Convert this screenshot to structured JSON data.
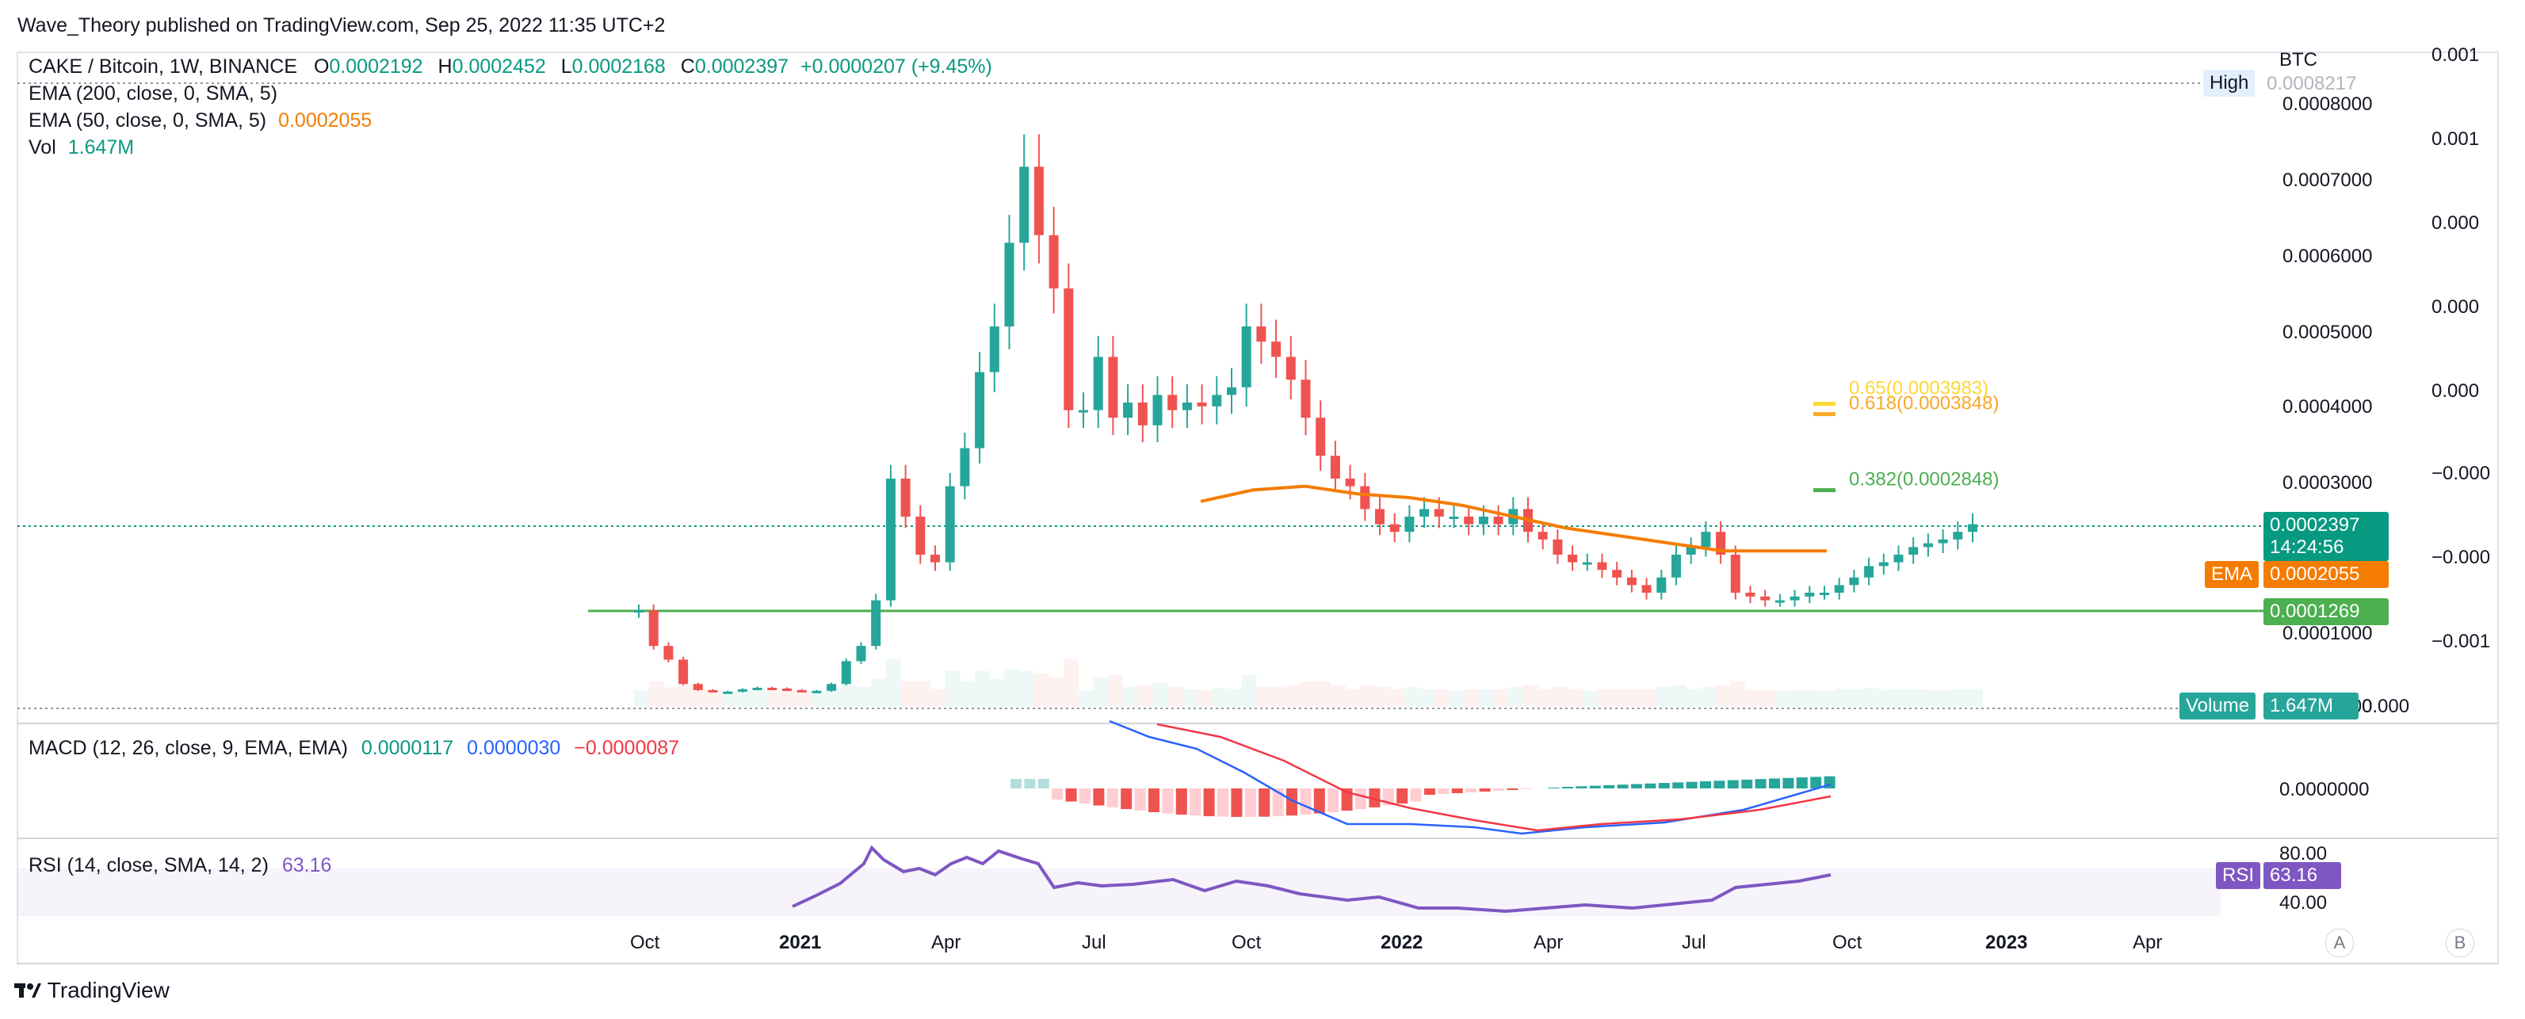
{
  "publisher": "Wave_Theory published on TradingView.com, Sep 25, 2022 11:35 UTC+2",
  "symbol": {
    "title": "CAKE / Bitcoin, 1W, BINANCE",
    "o_label": "O",
    "o": "0.0002192",
    "h_label": "H",
    "h": "0.0002452",
    "l_label": "L",
    "l": "0.0002168",
    "c_label": "C",
    "c": "0.0002397",
    "change": "+0.0000207 (+9.45%)"
  },
  "indicators": {
    "ema200": "EMA (200, close, 0, SMA, 5)",
    "ema50": "EMA (50, close, 0, SMA, 5)",
    "ema50_value": "0.0002055",
    "vol": "Vol",
    "vol_value": "1.647M",
    "macd": "MACD (12, 26, close, 9, EMA, EMA)",
    "macd_hist": "0.0000117",
    "macd_line": "0.0000030",
    "macd_signal": "−0.0000087",
    "rsi": "RSI (14, close, SMA, 14, 2)",
    "rsi_value": "63.16"
  },
  "price_axis": {
    "currency": "BTC",
    "labels": [
      "0.0008000",
      "0.0007000",
      "0.0006000",
      "0.0005000",
      "0.0004000",
      "0.0003000",
      "0.0001000",
      "0.0000000"
    ],
    "left_scale": [
      "0.001",
      "0.001",
      "0.000",
      "0.000",
      "0.000",
      "−0.000",
      "−0.000",
      "−0.001",
      "0.000"
    ],
    "high_label": "High",
    "high_value": "0.0008217",
    "last_price": "0.0002397",
    "countdown": "14:24:56",
    "ema_tag": "EMA",
    "ema_value": "0.0002055",
    "support_value": "0.0001269",
    "volume_tag": "Volume",
    "volume_value": "1.647M"
  },
  "fib_levels": [
    {
      "label": "0.382(0.0002848)",
      "price": 0.0002848,
      "color": "#4caf50"
    },
    {
      "label": "0.618(0.0003848)",
      "price": 0.0003848,
      "color": "#f9a825"
    },
    {
      "label": "0.65(0.0003983)",
      "price": 0.0003983,
      "color": "#fdd835"
    }
  ],
  "macd_axis": {
    "label": "0.0000000"
  },
  "rsi_axis": {
    "top": "80.00",
    "bottom": "40.00",
    "tag": "RSI",
    "value": "63.16"
  },
  "time_axis": [
    "Oct",
    "2021",
    "Apr",
    "Jul",
    "Oct",
    "2022",
    "Apr",
    "Jul",
    "Oct",
    "2023",
    "Apr"
  ],
  "buttons": {
    "a": "A",
    "b": "B"
  },
  "brand": "TradingView",
  "colors": {
    "up": "#26a69a",
    "down": "#ef5350",
    "ema": "#f57c00",
    "support": "#4caf50",
    "macd": "#2962ff",
    "signal": "#f23645",
    "rsi": "#7e57c2",
    "price_tag": "#089981"
  },
  "chart_data": {
    "type": "candlestick",
    "title": "CAKE / Bitcoin, 1W, BINANCE",
    "x_ticks": [
      "Oct",
      "2021",
      "Apr",
      "Jul",
      "Oct",
      "2022",
      "Apr",
      "Jul",
      "Oct",
      "2023",
      "Apr"
    ],
    "y_unit": "BTC",
    "ylim": [
      0.0,
      0.00082
    ],
    "support_level": 0.0001269,
    "price_segments": [
      {
        "from": "2020-09-28",
        "to": "2020-12-28",
        "values": [
          0.000127,
          8e-05,
          6.2e-05,
          3e-05,
          2.2e-05,
          2e-05,
          2e-05,
          2.3e-05,
          2.5e-05,
          2.4e-05,
          2.2e-05,
          2.1e-05,
          2.1e-05,
          3e-05
        ]
      },
      {
        "from": "2021-01-04",
        "to": "2021-06-28",
        "values": [
          6e-05,
          8e-05,
          0.00014,
          0.0003,
          0.00025,
          0.0002,
          0.00019,
          0.00029,
          0.00034,
          0.00044,
          0.0005,
          0.00061,
          0.00071,
          0.00062,
          0.00055,
          0.00039,
          0.00039,
          0.00046,
          0.00038,
          0.0004,
          0.00037,
          0.00041,
          0.00039,
          0.0004,
          0.000395,
          0.00041
        ]
      },
      {
        "from": "2021-07-05",
        "to": "2021-12-27",
        "values": [
          0.00042,
          0.0005,
          0.00048,
          0.00046,
          0.00043,
          0.00038,
          0.00033,
          0.0003,
          0.00029,
          0.00026,
          0.00024,
          0.00023,
          0.00025,
          0.00026,
          0.00025,
          0.00025,
          0.00024,
          0.00025,
          0.00024,
          0.00026,
          0.00023,
          0.00022,
          0.0002,
          0.00019,
          0.00019,
          0.00018
        ]
      },
      {
        "from": "2022-01-03",
        "to": "2022-09-19",
        "values": [
          0.00017,
          0.00016,
          0.00015,
          0.00017,
          0.0002,
          0.00021,
          0.00023,
          0.0002,
          0.00015,
          0.000145,
          0.00014,
          0.00014,
          0.000145,
          0.00015,
          0.00015,
          0.00016,
          0.00017,
          0.000185,
          0.00019,
          0.0002,
          0.00021,
          0.000215,
          0.00022,
          0.00023,
          0.00024
        ]
      }
    ],
    "ema50_series": {
      "name": "EMA",
      "values": [
        0.00027,
        0.000285,
        0.00029,
        0.00028,
        0.000275,
        0.000265,
        0.00025,
        0.000235,
        0.000225,
        0.000215,
        0.000205,
        0.000205,
        0.000205
      ]
    },
    "macd": {
      "hist_last": 1.17e-05,
      "macd_last": 3e-06,
      "signal_last": -8.7e-06
    },
    "rsi": {
      "last": 63.16,
      "range": [
        40,
        80
      ]
    }
  }
}
